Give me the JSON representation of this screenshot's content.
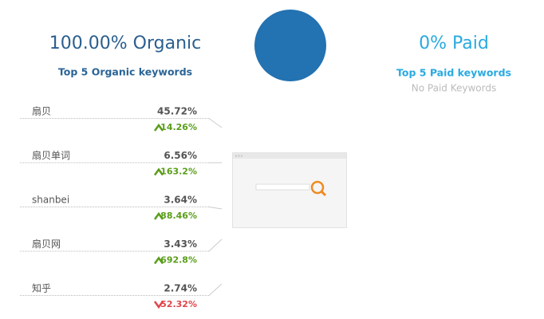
{
  "organic": {
    "title": "100.00% Organic",
    "subtitle": "Top 5 Organic keywords",
    "keywords": [
      {
        "keyword": "扇贝",
        "share": "45.72%",
        "change": "14.26%",
        "trend": "up"
      },
      {
        "keyword": "扇贝单词",
        "share": "6.56%",
        "change": "163.2%",
        "trend": "up"
      },
      {
        "keyword": "shanbei",
        "share": "3.64%",
        "change": "88.46%",
        "trend": "up"
      },
      {
        "keyword": "扇贝网",
        "share": "3.43%",
        "change": "692.8%",
        "trend": "up"
      },
      {
        "keyword": "知乎",
        "share": "2.74%",
        "change": "52.32%",
        "trend": "down"
      }
    ]
  },
  "paid": {
    "title": "0% Paid",
    "subtitle": "Top 5 Paid keywords",
    "empty_text": "No Paid Keywords"
  }
}
